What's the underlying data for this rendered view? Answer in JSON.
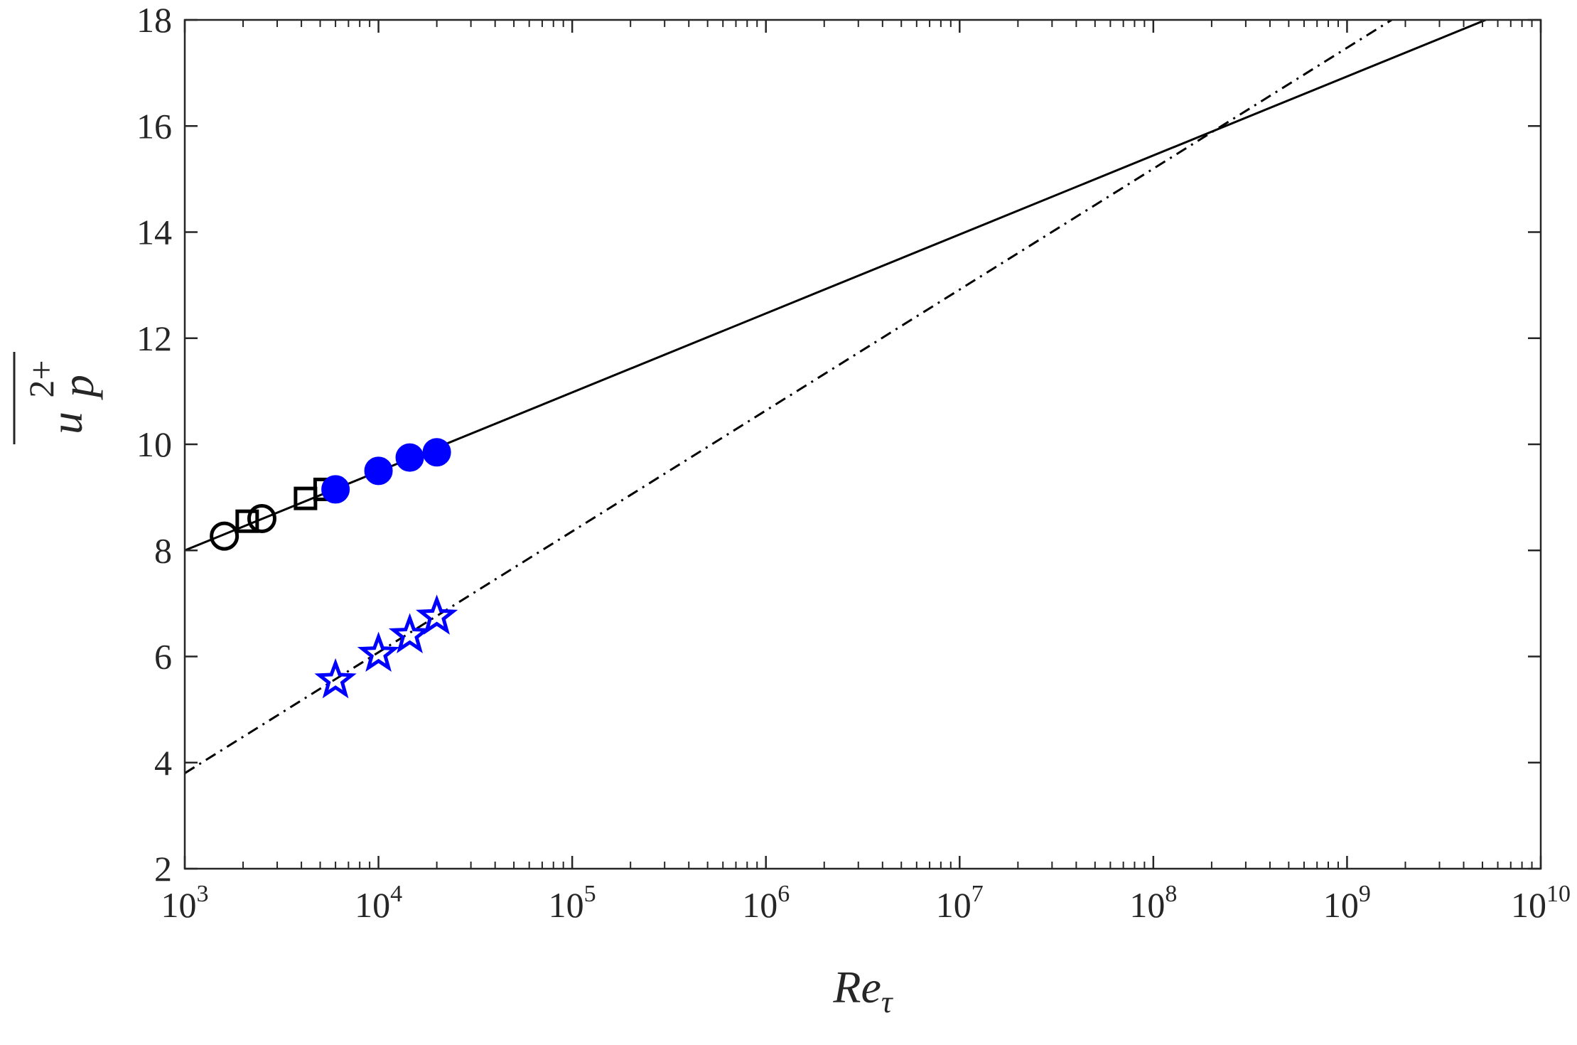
{
  "chart_data": {
    "type": "scatter",
    "xscale": "log",
    "xlim": [
      1000,
      10000000000
    ],
    "ylim": [
      2,
      18
    ],
    "grid": false,
    "xlabel": {
      "base": "Re",
      "subscript": "τ"
    },
    "ylabel": {
      "base": "u",
      "subscript": "p",
      "superscript": "2+",
      "overline": true
    },
    "xticks": [
      {
        "value": 1000,
        "base": "10",
        "exp": "3"
      },
      {
        "value": 10000,
        "base": "10",
        "exp": "4"
      },
      {
        "value": 100000,
        "base": "10",
        "exp": "5"
      },
      {
        "value": 1000000,
        "base": "10",
        "exp": "6"
      },
      {
        "value": 10000000,
        "base": "10",
        "exp": "7"
      },
      {
        "value": 100000000,
        "base": "10",
        "exp": "8"
      },
      {
        "value": 1000000000,
        "base": "10",
        "exp": "9"
      },
      {
        "value": 10000000000,
        "base": "10",
        "exp": "10"
      }
    ],
    "yticks": [
      "2",
      "4",
      "6",
      "8",
      "10",
      "12",
      "14",
      "16",
      "18"
    ],
    "series": [
      {
        "marker": "circle-open",
        "color": "#000000",
        "points": [
          [
            1600,
            8.27
          ],
          [
            2500,
            8.6
          ]
        ]
      },
      {
        "marker": "square-open",
        "color": "#000000",
        "points": [
          [
            2100,
            8.55
          ],
          [
            4200,
            8.98
          ],
          [
            5300,
            9.15
          ]
        ]
      },
      {
        "marker": "circle-filled",
        "color": "#0000ff",
        "points": [
          [
            6000,
            9.15
          ],
          [
            10000,
            9.5
          ],
          [
            14500,
            9.75
          ],
          [
            20000,
            9.85
          ]
        ]
      },
      {
        "marker": "star-open",
        "color": "#0000ff",
        "points": [
          [
            6000,
            5.55
          ],
          [
            10000,
            6.05
          ],
          [
            14500,
            6.4
          ],
          [
            20000,
            6.75
          ]
        ]
      }
    ],
    "lines": [
      {
        "style": "solid",
        "color": "#000000",
        "x": [
          1000,
          5200000000
        ],
        "y": [
          8.0,
          18.0
        ]
      },
      {
        "style": "dash-dot",
        "color": "#000000",
        "x": [
          1000,
          1700000000
        ],
        "y": [
          3.8,
          18.0
        ]
      }
    ]
  }
}
